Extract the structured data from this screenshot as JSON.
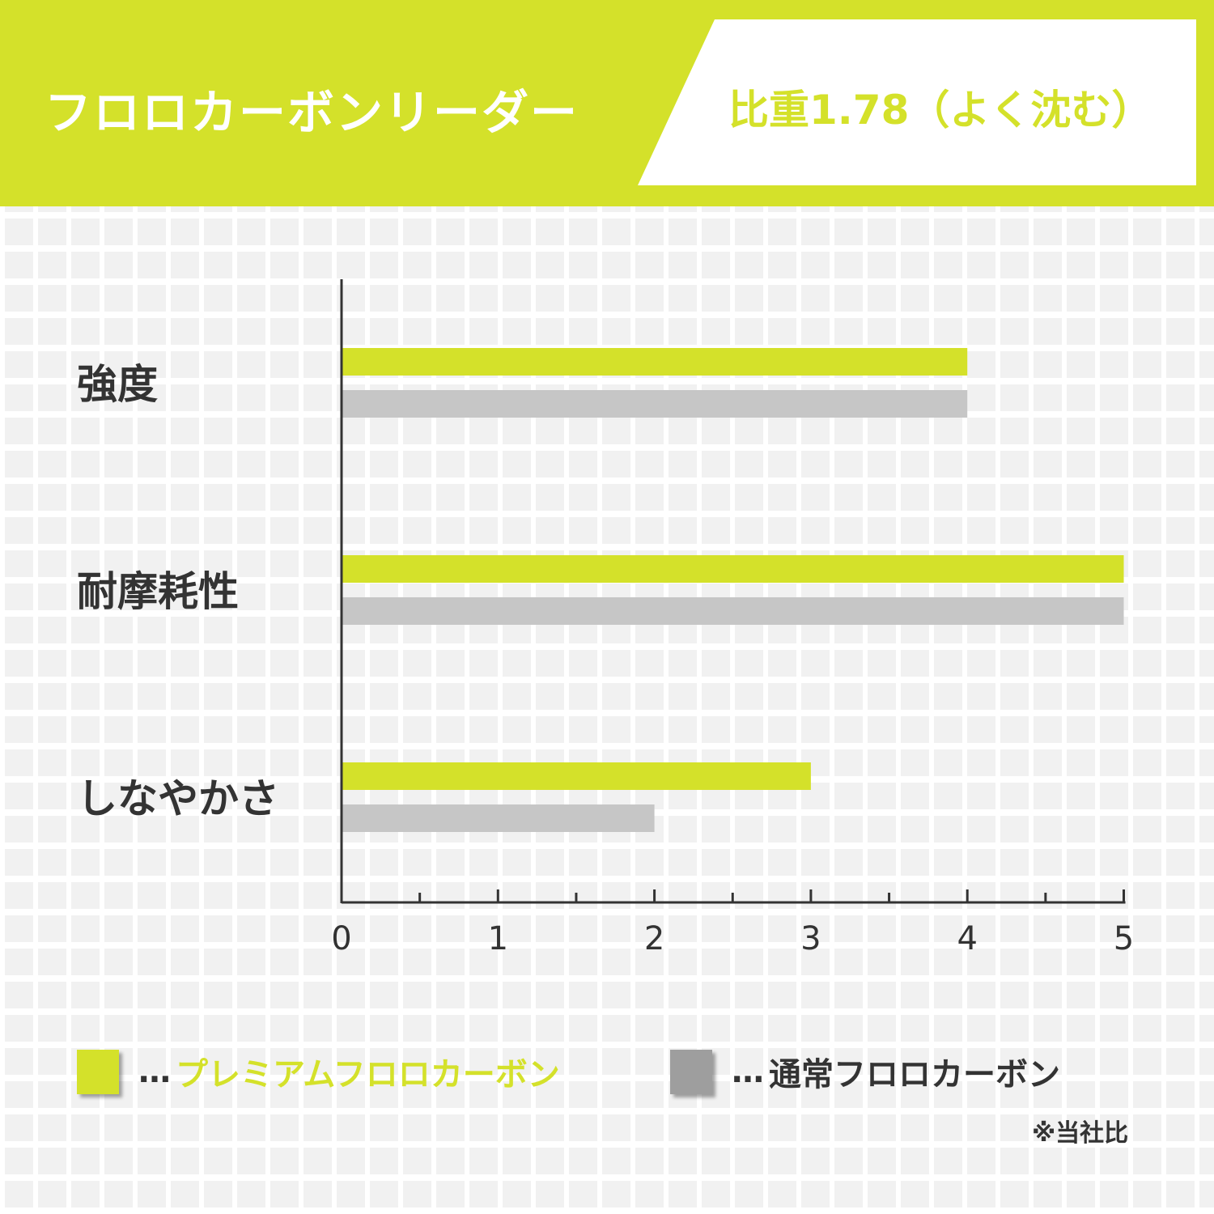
{
  "header": {
    "title": "フロロカーボンリーダー",
    "subtitle": "比重1.78（よく沈む）"
  },
  "colors": {
    "accent": "#d4e12a",
    "regular": "#c6c6c6",
    "legend_regular": "#9e9e9e",
    "text": "#333333"
  },
  "chart_data": {
    "type": "bar",
    "orientation": "horizontal",
    "categories": [
      "強度",
      "耐摩耗性",
      "しなやかさ"
    ],
    "series": [
      {
        "name": "プレミアムフロロカーボン",
        "values": [
          4,
          5,
          3
        ],
        "color": "#d4e12a"
      },
      {
        "name": "通常フロロカーボン",
        "values": [
          4,
          5,
          2
        ],
        "color": "#c6c6c6"
      }
    ],
    "xlim": [
      0,
      5
    ],
    "xticks": [
      "0",
      "1",
      "2",
      "3",
      "4",
      "5"
    ],
    "minor_ticks": 0.5,
    "grid": false,
    "legend_position": "bottom"
  },
  "legend": {
    "prefix": "…",
    "items": [
      "プレミアムフロロカーボン",
      "通常フロロカーボン"
    ]
  },
  "note": "※当社比"
}
